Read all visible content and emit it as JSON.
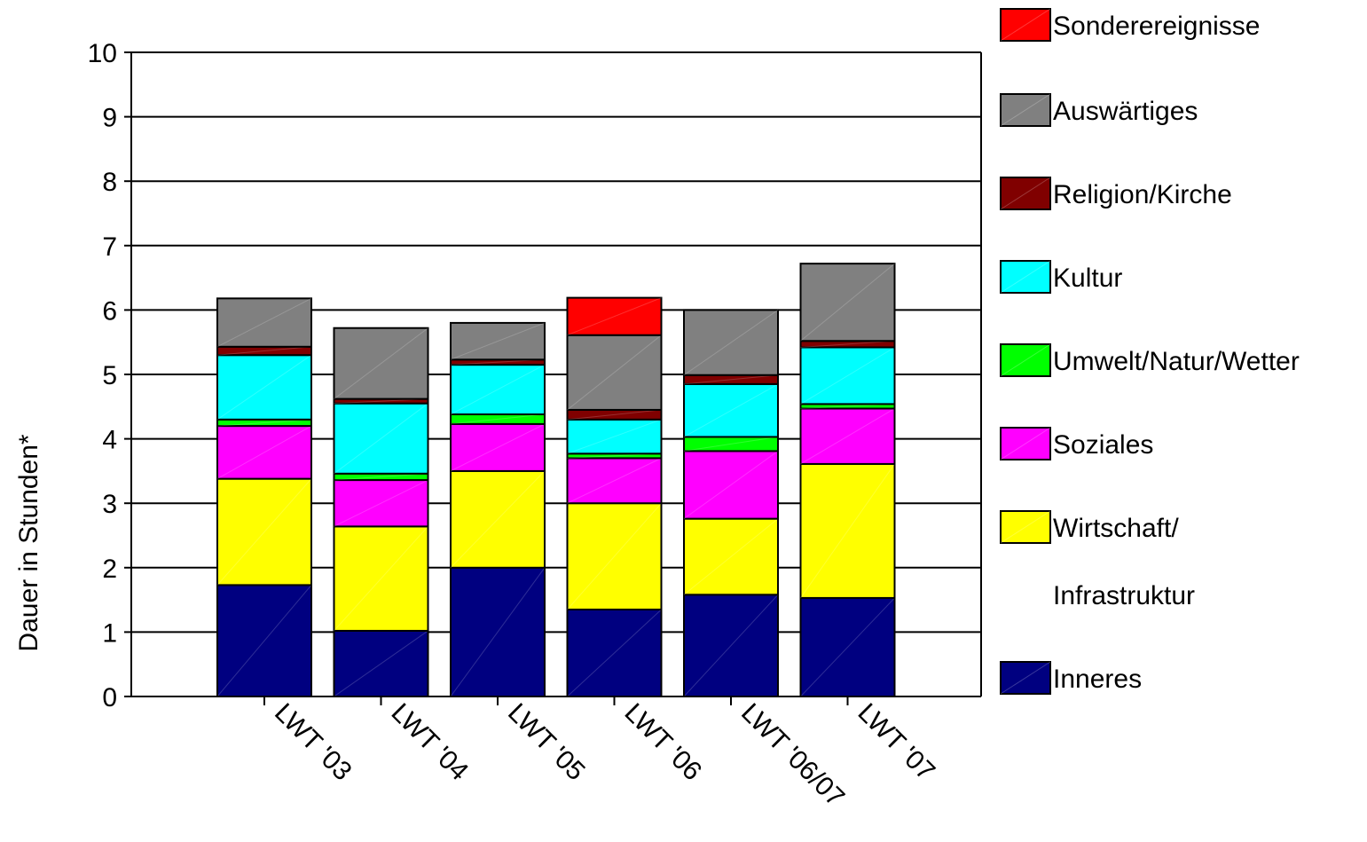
{
  "chart_data": {
    "type": "bar",
    "stacked": true,
    "title": "",
    "xlabel": "",
    "ylabel": "Dauer in Stunden*",
    "ylim": [
      0,
      10
    ],
    "yticks": [
      0,
      1,
      2,
      3,
      4,
      5,
      6,
      7,
      8,
      9,
      10
    ],
    "grid": true,
    "legend_position": "right",
    "categories": [
      "LWT '03",
      "LWT '04",
      "LWT '05",
      "LWT '06",
      "LWT '06/07",
      "LWT '07"
    ],
    "series": [
      {
        "name": "Inneres",
        "color": "#000080",
        "values": [
          1.73,
          1.02,
          2.0,
          1.35,
          1.58,
          1.53
        ]
      },
      {
        "name": "Wirtschaft/ Infrastruktur",
        "color": "#ffff00",
        "values": [
          1.65,
          1.62,
          1.5,
          1.65,
          1.18,
          2.08
        ]
      },
      {
        "name": "Soziales",
        "color": "#ff00ff",
        "values": [
          0.82,
          0.72,
          0.73,
          0.7,
          1.05,
          0.86
        ]
      },
      {
        "name": "Umwelt/Natur/Wetter",
        "color": "#00ff00",
        "values": [
          0.1,
          0.1,
          0.15,
          0.07,
          0.22,
          0.07
        ]
      },
      {
        "name": "Kultur",
        "color": "#00ffff",
        "values": [
          1.0,
          1.09,
          0.77,
          0.53,
          0.82,
          0.88
        ]
      },
      {
        "name": "Religion/Kirche",
        "color": "#800000",
        "values": [
          0.13,
          0.07,
          0.08,
          0.15,
          0.14,
          0.1
        ]
      },
      {
        "name": "Auswärtiges",
        "color": "#808080",
        "values": [
          0.75,
          1.1,
          0.57,
          1.16,
          1.01,
          1.2
        ]
      },
      {
        "name": "Sonderereignisse",
        "color": "#ff0000",
        "values": [
          0,
          0,
          0,
          0.58,
          0,
          0
        ]
      }
    ]
  }
}
